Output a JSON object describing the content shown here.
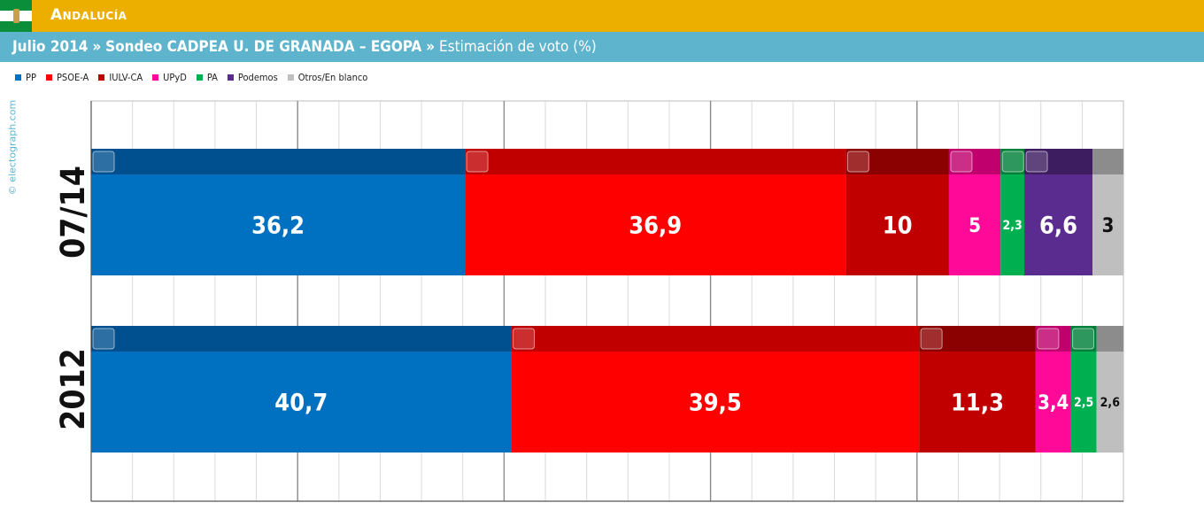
{
  "header": {
    "region": "Andalucía",
    "date_label": "Julio 2014",
    "pollster": "Sondeo CADPEA U. DE GRANADA – EGOPA",
    "measure": "Estimación de voto (%)",
    "separator": "»"
  },
  "credit": "© electograph.com",
  "colors": {
    "topbar": "#ecaf00",
    "subbar": "#5fb4cd",
    "flag_green": "#0a8e3a"
  },
  "chart_data": {
    "type": "bar",
    "orientation": "horizontal",
    "stacked": true,
    "xlim": [
      0,
      100
    ],
    "grid": true,
    "legend_position": "top-left",
    "categories": [
      "07/14",
      "2012"
    ],
    "series": [
      {
        "name": "PP",
        "color": "#0070c0",
        "band": "#00508f",
        "logo": "PP",
        "values": [
          36.2,
          40.7
        ],
        "labels": [
          "36,2",
          "40,7"
        ]
      },
      {
        "name": "PSOE-A",
        "color": "#ff0000",
        "band": "#c00000",
        "logo": "PSOE",
        "values": [
          36.9,
          39.5
        ],
        "labels": [
          "36,9",
          "39,5"
        ]
      },
      {
        "name": "IULV-CA",
        "color": "#c00000",
        "band": "#8b0000",
        "logo": "iu",
        "values": [
          10,
          11.3
        ],
        "labels": [
          "10",
          "11,3"
        ]
      },
      {
        "name": "UPyD",
        "color": "#ff0a98",
        "band": "#c0006d",
        "logo": "upd",
        "values": [
          5,
          3.4
        ],
        "labels": [
          "5",
          "3,4"
        ]
      },
      {
        "name": "PA",
        "color": "#00b050",
        "band": "#00803a",
        "logo": "pa",
        "values": [
          2.3,
          2.5
        ],
        "labels": [
          "2,3",
          "2,5"
        ]
      },
      {
        "name": "Podemos",
        "color": "#5b2c8f",
        "band": "#3d1c60",
        "logo": "podemos",
        "values": [
          6.6,
          0
        ],
        "labels": [
          "6,6",
          ""
        ]
      },
      {
        "name": "Otros/En blanco",
        "color": "#bfbfbf",
        "band": "#8c8c8c",
        "logo": "",
        "values": [
          3,
          2.6
        ],
        "labels": [
          "3",
          "2,6"
        ]
      }
    ]
  }
}
